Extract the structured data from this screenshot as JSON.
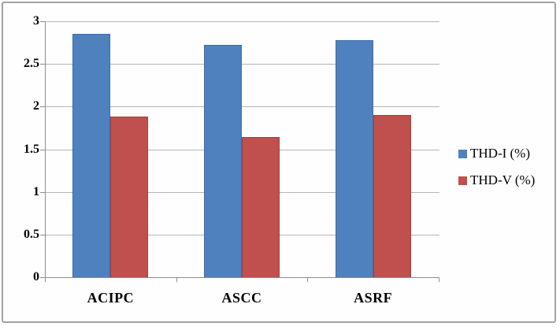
{
  "frame": {
    "background": "#fefefe",
    "border_color": "#a3a3a3"
  },
  "chart_data": {
    "type": "bar",
    "title": "",
    "xlabel": "",
    "ylabel": "",
    "categories": [
      "ACIPC",
      "ASCC",
      "ASRF"
    ],
    "series": [
      {
        "name": "THD-I (%)",
        "color": "#4e81bd",
        "border_color": "#3d6da8",
        "values": [
          2.85,
          2.72,
          2.78
        ]
      },
      {
        "name": "THD-V (%)",
        "color": "#c0504d",
        "border_color": "#a23f3d",
        "values": [
          1.88,
          1.64,
          1.9
        ]
      }
    ],
    "ylim": [
      0,
      3
    ],
    "ytick_step": 0.5,
    "ytick_labels": [
      "0",
      "0.5",
      "1",
      "1.5",
      "2",
      "2.5",
      "3"
    ],
    "grid": true,
    "legend_position": "right",
    "gridline_color": "#b5b5b5",
    "axis_color": "#8e8e8e",
    "text_color": "#000000"
  }
}
